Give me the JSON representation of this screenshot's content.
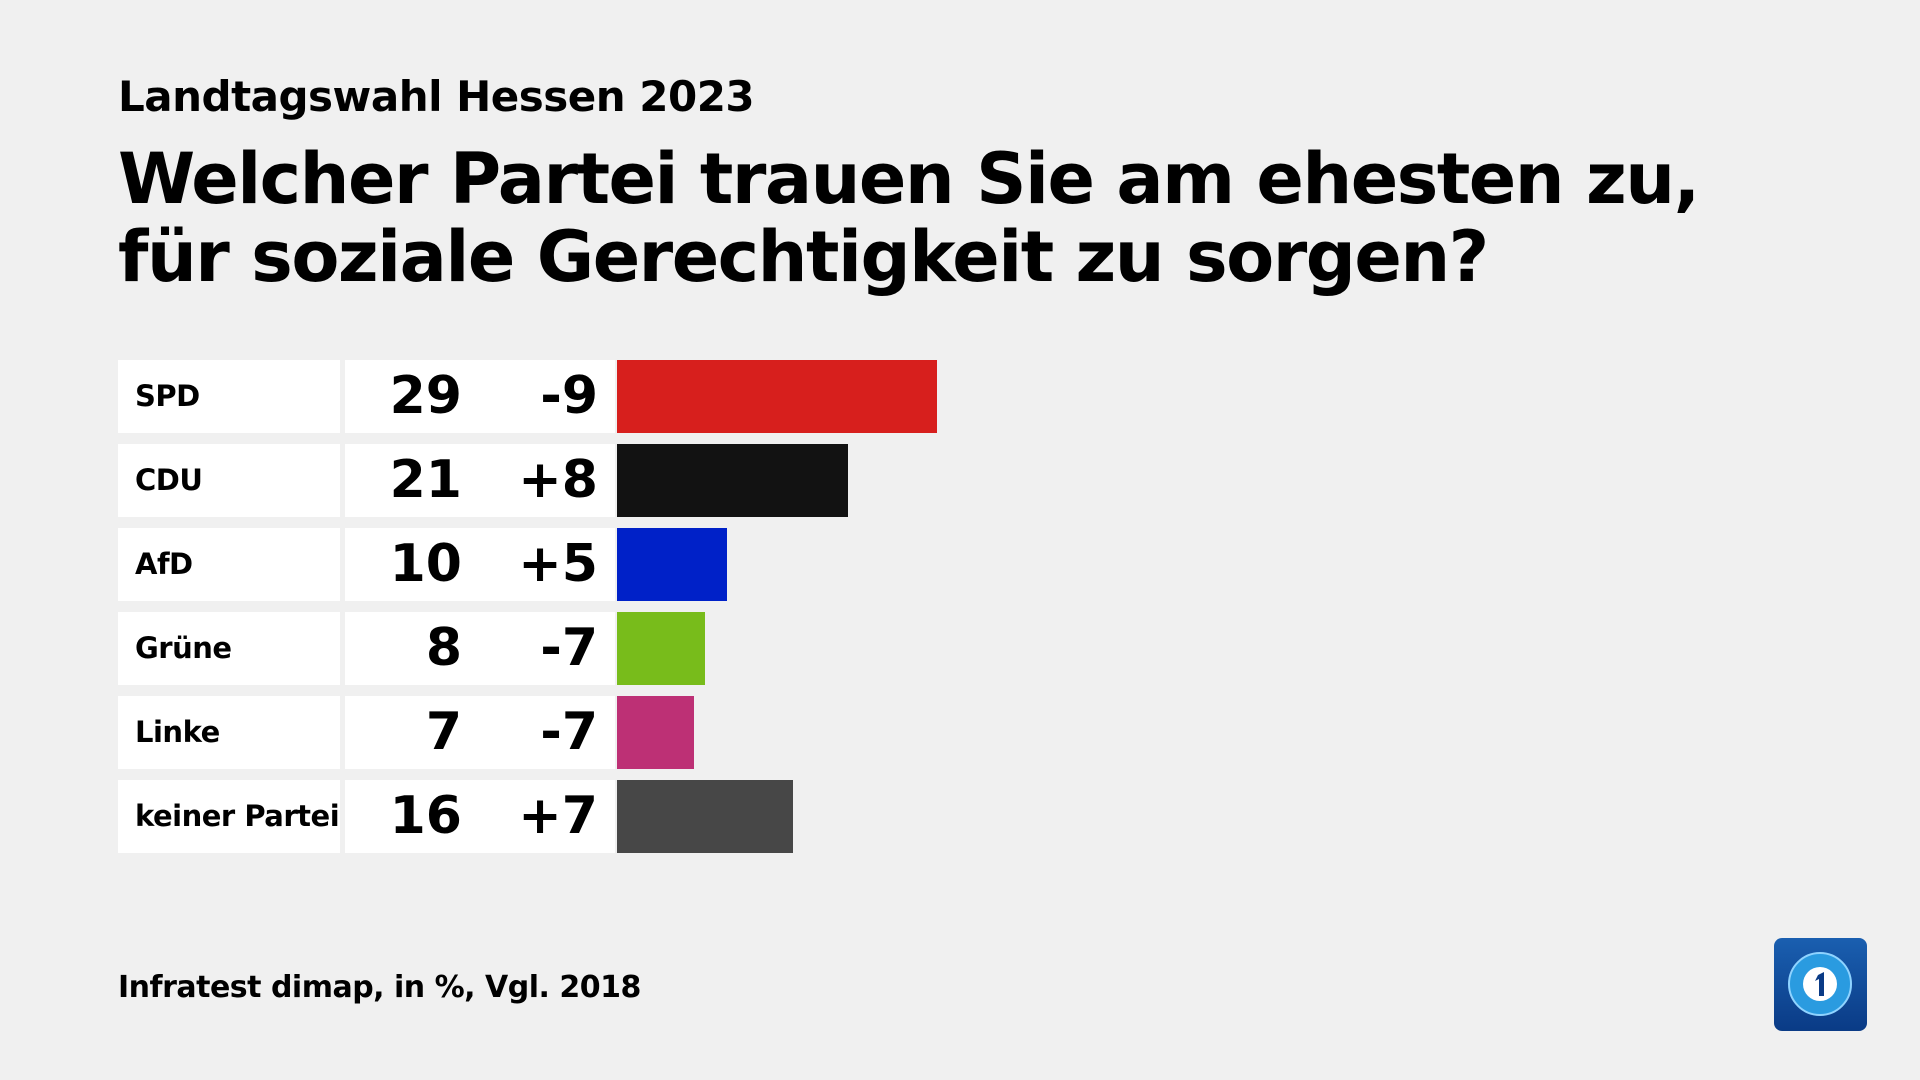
{
  "subtitle": "Landtagswahl Hessen 2023",
  "title": "Welcher Partei trauen Sie am ehesten zu, für soziale Gerechtigkeit zu sorgen?",
  "footer": "Infratest dimap, in %, Vgl. 2018",
  "logo": "ARD Das Erste logo",
  "chart_data": {
    "type": "bar",
    "orientation": "horizontal",
    "title": "Welcher Partei trauen Sie am ehesten zu, für soziale Gerechtigkeit zu sorgen?",
    "categories": [
      "SPD",
      "CDU",
      "AfD",
      "Grüne",
      "Linke",
      "keiner Partei"
    ],
    "values": [
      29,
      21,
      10,
      8,
      7,
      16
    ],
    "changes": [
      "-9",
      "+8",
      "+5",
      "-7",
      "-7",
      "+7"
    ],
    "colors": [
      "#d71f1d",
      "#121212",
      "#0021c8",
      "#78bc1b",
      "#bd3075",
      "#474747"
    ],
    "unit": "%",
    "grid": false
  }
}
